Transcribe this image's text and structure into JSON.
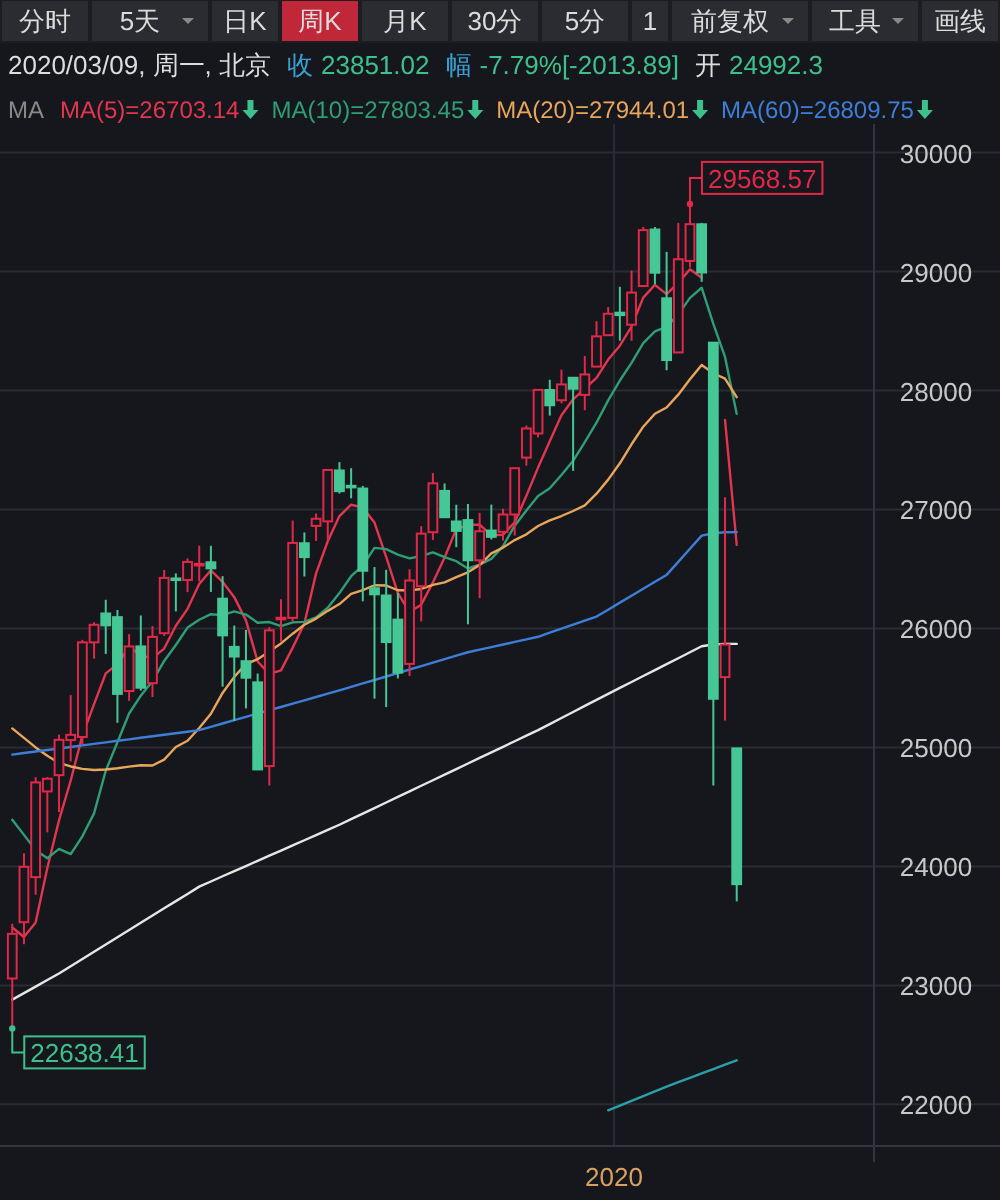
{
  "chart_data": {
    "type": "candlestick",
    "subtitle": "2020/03/09, 周一, 北京",
    "legend_title": "MA",
    "annotations": [
      "分时",
      "5天",
      "日K",
      "周K",
      "月K",
      "30分",
      "5分",
      "1",
      "前复权",
      "工具",
      "画线",
      "收",
      "23851.02",
      "幅",
      "-7.79%[-2013.89]",
      "开",
      "24992.3",
      "29568.57",
      "22638.41"
    ],
    "categories": [
      null,
      null,
      null,
      null,
      null,
      null,
      null,
      null,
      null,
      null,
      null,
      null,
      null,
      null,
      null,
      null,
      null,
      null,
      null,
      null,
      null,
      null,
      null,
      null,
      null,
      null,
      null,
      null,
      null,
      null,
      null,
      null,
      null,
      null,
      null,
      null,
      null,
      null,
      null,
      null,
      null,
      null,
      null,
      null,
      null,
      null,
      null,
      null,
      null,
      null,
      null,
      null,
      "2020",
      null,
      null,
      null,
      null,
      null,
      null,
      null,
      null,
      null,
      null
    ],
    "ohlc": [
      [
        23058,
        23518,
        22638.41,
        23433
      ],
      [
        23531,
        24110,
        23346,
        23996
      ],
      [
        23910,
        24750,
        23762,
        24706
      ],
      [
        24630,
        24750,
        24286,
        24737
      ],
      [
        24767,
        25108,
        24457,
        25064
      ],
      [
        25062,
        25440,
        24883,
        25106
      ],
      [
        25088,
        25904,
        25028,
        25883
      ],
      [
        25883,
        26052,
        25746,
        26031
      ],
      [
        26126,
        26241,
        25786,
        26026
      ],
      [
        26095,
        26155,
        25207,
        25450
      ],
      [
        25474,
        25952,
        25391,
        25849
      ],
      [
        25849,
        26109,
        25478,
        25502
      ],
      [
        25540,
        26020,
        25424,
        25929
      ],
      [
        25960,
        26492,
        25937,
        26425
      ],
      [
        26420,
        26463,
        26143,
        26412
      ],
      [
        26407,
        26589,
        26305,
        26559
      ],
      [
        26540,
        26696,
        26395,
        26543
      ],
      [
        26556,
        26695,
        26307,
        26505
      ],
      [
        26250,
        26440,
        25511,
        25942
      ],
      [
        25845,
        26024,
        25222,
        25764
      ],
      [
        25725,
        25987,
        25328,
        25586
      ],
      [
        25547,
        25621,
        24813,
        24815
      ],
      [
        24843,
        26012,
        24680,
        25984
      ],
      [
        26078,
        26245,
        25890,
        26090
      ],
      [
        26089,
        26907,
        26059,
        26719
      ],
      [
        26716,
        26807,
        26437,
        26600
      ],
      [
        26862,
        26966,
        26735,
        26922
      ],
      [
        26900,
        27338,
        26740,
        27332
      ],
      [
        27328,
        27398,
        27134,
        27154
      ],
      [
        27199,
        27347,
        27094,
        27192
      ],
      [
        27176,
        27198,
        26228,
        26485
      ],
      [
        26338,
        26516,
        25410,
        26287
      ],
      [
        26277,
        26493,
        25339,
        25886
      ],
      [
        26074,
        26299,
        25580,
        25629
      ],
      [
        25702,
        26497,
        25600,
        26403
      ],
      [
        26355,
        26860,
        26059,
        26797
      ],
      [
        26809,
        27306,
        26744,
        27220
      ],
      [
        27156,
        27219,
        26935,
        26935
      ],
      [
        26899,
        27040,
        26683,
        26820
      ],
      [
        26911,
        27046,
        26035,
        26573
      ],
      [
        26573,
        26972,
        26255,
        26817
      ],
      [
        26823,
        27041,
        26748,
        26770
      ],
      [
        26812,
        27006,
        26739,
        26958
      ],
      [
        26958,
        27347,
        26781,
        27347
      ],
      [
        27436,
        27706,
        27368,
        27681
      ],
      [
        27639,
        28005,
        27606,
        28005
      ],
      [
        28004,
        28090,
        27789,
        27876
      ],
      [
        27918,
        28175,
        27893,
        28051
      ],
      [
        28107,
        28107,
        27325,
        28015
      ],
      [
        27963,
        28290,
        27834,
        28135
      ],
      [
        28201,
        28582,
        28201,
        28455
      ],
      [
        28465,
        28701,
        28465,
        28645
      ],
      [
        28654,
        28872,
        28419,
        28634
      ],
      [
        28553,
        29009,
        28418,
        28823
      ],
      [
        28878,
        29374,
        28876,
        29348
      ],
      [
        29353,
        29374,
        28893,
        28990
      ],
      [
        28775,
        29165,
        28170,
        28256
      ],
      [
        28320,
        29408,
        28320,
        29103
      ],
      [
        29089,
        29568.57,
        29034,
        29398
      ],
      [
        29397,
        29409,
        28913,
        28992
      ],
      [
        28402,
        28402,
        24681,
        25409
      ],
      [
        25591,
        27102,
        25226,
        25865
      ],
      [
        24992,
        24992,
        23706,
        23851
      ]
    ],
    "colors": [
      "#e0294a",
      "#e0294a",
      "#e0294a",
      "#e0294a",
      "#e0294a",
      "#e0294a",
      "#e0294a",
      "#e0294a",
      "#45c796",
      "#45c796",
      "#e0294a",
      "#45c796",
      "#e0294a",
      "#e0294a",
      "#45c796",
      "#e0294a",
      "#e0294a",
      "#45c796",
      "#45c796",
      "#45c796",
      "#45c796",
      "#45c796",
      "#e0294a",
      "#e0294a",
      "#e0294a",
      "#45c796",
      "#e0294a",
      "#e0294a",
      "#45c796",
      "#45c796",
      "#45c796",
      "#45c796",
      "#45c796",
      "#45c796",
      "#e0294a",
      "#e0294a",
      "#e0294a",
      "#45c796",
      "#45c796",
      "#45c796",
      "#e0294a",
      "#45c796",
      "#e0294a",
      "#e0294a",
      "#e0294a",
      "#e0294a",
      "#45c796",
      "#e0294a",
      "#45c796",
      "#e0294a",
      "#e0294a",
      "#e0294a",
      "#45c796",
      "#e0294a",
      "#e0294a",
      "#45c796",
      "#45c796",
      "#e0294a",
      "#e0294a",
      "#45c796",
      "#45c796",
      "#e0294a",
      "#45c796"
    ],
    "series": [
      {
        "type": "line",
        "name": "MA(5)=26703.14",
        "color": "#e2364f",
        "values": [
          23486,
          23407,
          23528,
          23987,
          24387,
          24722,
          25099,
          25364,
          25622,
          25699,
          25848,
          25772,
          25751,
          25831,
          26023,
          26165,
          26374,
          26489,
          26392,
          26263,
          26068,
          25722,
          25618,
          25648,
          25839,
          26042,
          26463,
          26733,
          26945,
          27040,
          27017,
          26890,
          26601,
          26296,
          26138,
          26200,
          26387,
          26597,
          26835,
          26869,
          26873,
          26783,
          26788,
          26893,
          27115,
          27352,
          27573,
          27792,
          27926,
          28016,
          28106,
          28260,
          28377,
          28538,
          28781,
          28888,
          28810,
          28904,
          29019,
          28948,
          null,
          27753,
          26703.14
        ]
      },
      {
        "type": "line",
        "name": "MA(10)=27803.45",
        "color": "#2f9e74",
        "values": [
          24392,
          24265,
          24137,
          24069,
          24147,
          24104,
          24253,
          24446,
          24804,
          25043,
          25285,
          25435,
          25558,
          25727,
          25861,
          26007,
          26073,
          26120,
          26112,
          26143,
          26117,
          26048,
          26054,
          26020,
          26051,
          26055,
          26093,
          26175,
          26297,
          26439,
          26529,
          26677,
          26667,
          26621,
          26589,
          26609,
          26639,
          26599,
          26565,
          26504,
          26537,
          26585,
          26692,
          26864,
          26992,
          27113,
          27178,
          27290,
          27409,
          27566,
          27729,
          27917,
          28084,
          28232,
          28399,
          28497,
          28535,
          28640,
          28779,
          28864,
          28560,
          28282,
          27803.45
        ]
      },
      {
        "type": "line",
        "name": "MA(20)=27944.01",
        "color": "#e9a55c",
        "values": [
          25160,
          25080,
          25000,
          24930,
          24870,
          24840,
          24820,
          24810,
          24815,
          24825,
          24839,
          24850,
          24848,
          24898,
          25004,
          25056,
          25163,
          25283,
          25458,
          25593,
          25701,
          25742,
          25806,
          25874,
          25956,
          26031,
          26083,
          26148,
          26205,
          26291,
          26323,
          26363,
          26361,
          26321,
          26320,
          26332,
          26366,
          26387,
          26431,
          26472,
          26533,
          26631,
          26680,
          26743,
          26791,
          26861,
          26909,
          26945,
          26987,
          27035,
          27133,
          27251,
          27388,
          27548,
          27696,
          27805,
          27857,
          27965,
          28094,
          28215,
          28145,
          28100,
          27944.01
        ]
      },
      {
        "type": "line",
        "name": "MA(60)=26809.75",
        "color": "#3d7fd8",
        "values": [
          24940,
          24953,
          24966,
          24979,
          24991,
          25004,
          25017,
          25030,
          25043,
          25056,
          25068,
          25081,
          25094,
          25107,
          25119,
          25132,
          25145,
          25173,
          25201,
          25229,
          25257,
          25285,
          25313,
          25340,
          25368,
          25396,
          25424,
          25452,
          25480,
          25509,
          25538,
          25567,
          25596,
          25625,
          25655,
          25684,
          25713,
          25742,
          25771,
          25800,
          25822,
          25843,
          25865,
          25887,
          25908,
          25930,
          25964,
          25998,
          26032,
          26066,
          26100,
          26158,
          26217,
          26275,
          26333,
          26392,
          26450,
          26560,
          26670,
          26780,
          26800,
          26808,
          26809.75
        ]
      },
      {
        "type": "line",
        "color": "#e6e6e6",
        "values": [
          22880,
          22935,
          22990,
          23045,
          23100,
          23161,
          23222,
          23283,
          23343,
          23404,
          23465,
          23526,
          23587,
          23648,
          23708,
          23769,
          23830,
          23873,
          23917,
          23960,
          24003,
          24047,
          24090,
          24133,
          24177,
          24220,
          24263,
          24307,
          24350,
          24397,
          24444,
          24490,
          24537,
          24584,
          24631,
          24678,
          24724,
          24771,
          24818,
          24865,
          24912,
          24958,
          25005,
          25052,
          25099,
          25145,
          25196,
          25247,
          25298,
          25349,
          25400,
          25450,
          25500,
          25550,
          25600,
          25650,
          25700,
          25750,
          25800,
          25850,
          25865,
          25870,
          25870
        ]
      },
      {
        "type": "line",
        "color": "#2aa0a8",
        "values": [
          null,
          null,
          null,
          null,
          null,
          null,
          null,
          null,
          null,
          null,
          null,
          null,
          null,
          null,
          null,
          null,
          null,
          null,
          null,
          null,
          null,
          null,
          null,
          null,
          null,
          null,
          null,
          null,
          null,
          null,
          null,
          null,
          null,
          null,
          null,
          null,
          null,
          null,
          null,
          null,
          null,
          null,
          null,
          null,
          null,
          null,
          null,
          null,
          null,
          null,
          null,
          21950,
          21990,
          22030,
          22070,
          22110,
          22150,
          22187,
          22223,
          22260,
          22297,
          22333,
          22370
        ]
      }
    ],
    "ylim": [
      21650,
      30240
    ],
    "yticks": [
      22000,
      23000,
      24000,
      25000,
      26000,
      27000,
      28000,
      29000,
      30000
    ],
    "grid": true,
    "legend": "top"
  }
}
